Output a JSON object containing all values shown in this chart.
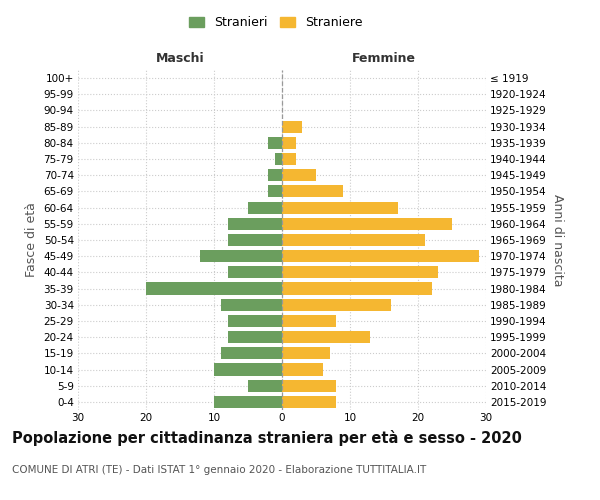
{
  "age_groups": [
    "100+",
    "95-99",
    "90-94",
    "85-89",
    "80-84",
    "75-79",
    "70-74",
    "65-69",
    "60-64",
    "55-59",
    "50-54",
    "45-49",
    "40-44",
    "35-39",
    "30-34",
    "25-29",
    "20-24",
    "15-19",
    "10-14",
    "5-9",
    "0-4"
  ],
  "birth_years": [
    "≤ 1919",
    "1920-1924",
    "1925-1929",
    "1930-1934",
    "1935-1939",
    "1940-1944",
    "1945-1949",
    "1950-1954",
    "1955-1959",
    "1960-1964",
    "1965-1969",
    "1970-1974",
    "1975-1979",
    "1980-1984",
    "1985-1989",
    "1990-1994",
    "1995-1999",
    "2000-2004",
    "2005-2009",
    "2010-2014",
    "2015-2019"
  ],
  "maschi": [
    0,
    0,
    0,
    0,
    2,
    1,
    2,
    2,
    5,
    8,
    8,
    12,
    8,
    20,
    9,
    8,
    8,
    9,
    10,
    5,
    10
  ],
  "femmine": [
    0,
    0,
    0,
    3,
    2,
    2,
    5,
    9,
    17,
    25,
    21,
    29,
    23,
    22,
    16,
    8,
    13,
    7,
    6,
    8,
    8
  ],
  "maschi_color": "#6b9e5e",
  "femmine_color": "#f5b731",
  "background_color": "#ffffff",
  "grid_color": "#cccccc",
  "title": "Popolazione per cittadinanza straniera per età e sesso - 2020",
  "subtitle": "COMUNE DI ATRI (TE) - Dati ISTAT 1° gennaio 2020 - Elaborazione TUTTITALIA.IT",
  "xlabel_left": "Maschi",
  "xlabel_right": "Femmine",
  "ylabel_left": "Fasce di età",
  "ylabel_right": "Anni di nascita",
  "legend_maschi": "Stranieri",
  "legend_femmine": "Straniere",
  "xlim": 30,
  "title_fontsize": 10.5,
  "subtitle_fontsize": 7.5,
  "axis_fontsize": 9,
  "tick_fontsize": 7.5
}
